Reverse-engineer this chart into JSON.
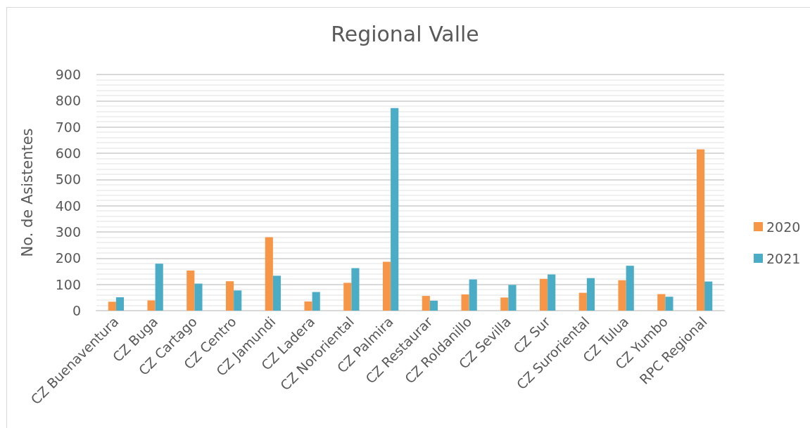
{
  "chart_data": {
    "type": "bar",
    "title": "Regional Valle",
    "ylabel": "No. de Asistentes",
    "categories": [
      "CZ Buenaventura",
      "CZ Buga",
      "CZ Cartago",
      "CZ Centro",
      "CZ Jamundi",
      "CZ Ladera",
      "CZ Nororiental",
      "CZ Palmira",
      "CZ Restaurar",
      "CZ Roldanillo",
      "CZ Sevilla",
      "CZ Sur",
      "CZ Suroriental",
      "CZ Tulua",
      "CZ Yumbo",
      "RPC Regional"
    ],
    "series": [
      {
        "name": "2020",
        "color": "#f79646",
        "values": [
          34,
          39,
          153,
          112,
          280,
          35,
          106,
          186,
          56,
          62,
          50,
          121,
          68,
          116,
          63,
          615
        ]
      },
      {
        "name": "2021",
        "color": "#4bacc6",
        "values": [
          51,
          179,
          103,
          77,
          133,
          71,
          162,
          772,
          38,
          119,
          98,
          138,
          124,
          171,
          53,
          111
        ]
      }
    ],
    "ylim": [
      0,
      900
    ],
    "yticks": [
      0,
      100,
      200,
      300,
      400,
      500,
      600,
      700,
      800,
      900
    ],
    "grid": "y",
    "legend": "right"
  }
}
